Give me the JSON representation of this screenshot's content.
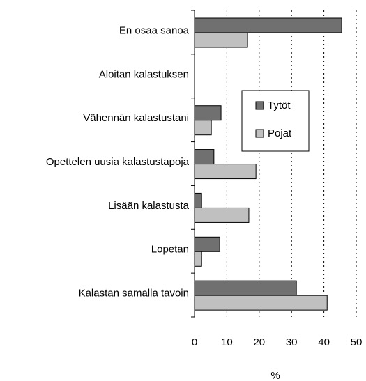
{
  "chart_data": {
    "type": "bar",
    "orientation": "horizontal",
    "categories": [
      "En osaa sanoa",
      "Aloitan kalastuksen",
      "Vähennän kalastustani",
      "Opettelen uusia kalastustapoja",
      "Lisään kalastusta",
      "Lopetan",
      "Kalastan samalla tavoin"
    ],
    "series": [
      {
        "name": "Tytöt",
        "color": "#707070",
        "values": [
          45.5,
          0,
          8.2,
          6,
          2.2,
          7.8,
          31.5
        ]
      },
      {
        "name": "Pojat",
        "color": "#c0c0c0",
        "values": [
          16.4,
          0,
          5.2,
          19,
          16.8,
          2.2,
          41
        ]
      }
    ],
    "xlabel": "%",
    "xlim": [
      0,
      50
    ],
    "xticks": [
      0,
      10,
      20,
      30,
      40,
      50
    ],
    "grid": true
  }
}
